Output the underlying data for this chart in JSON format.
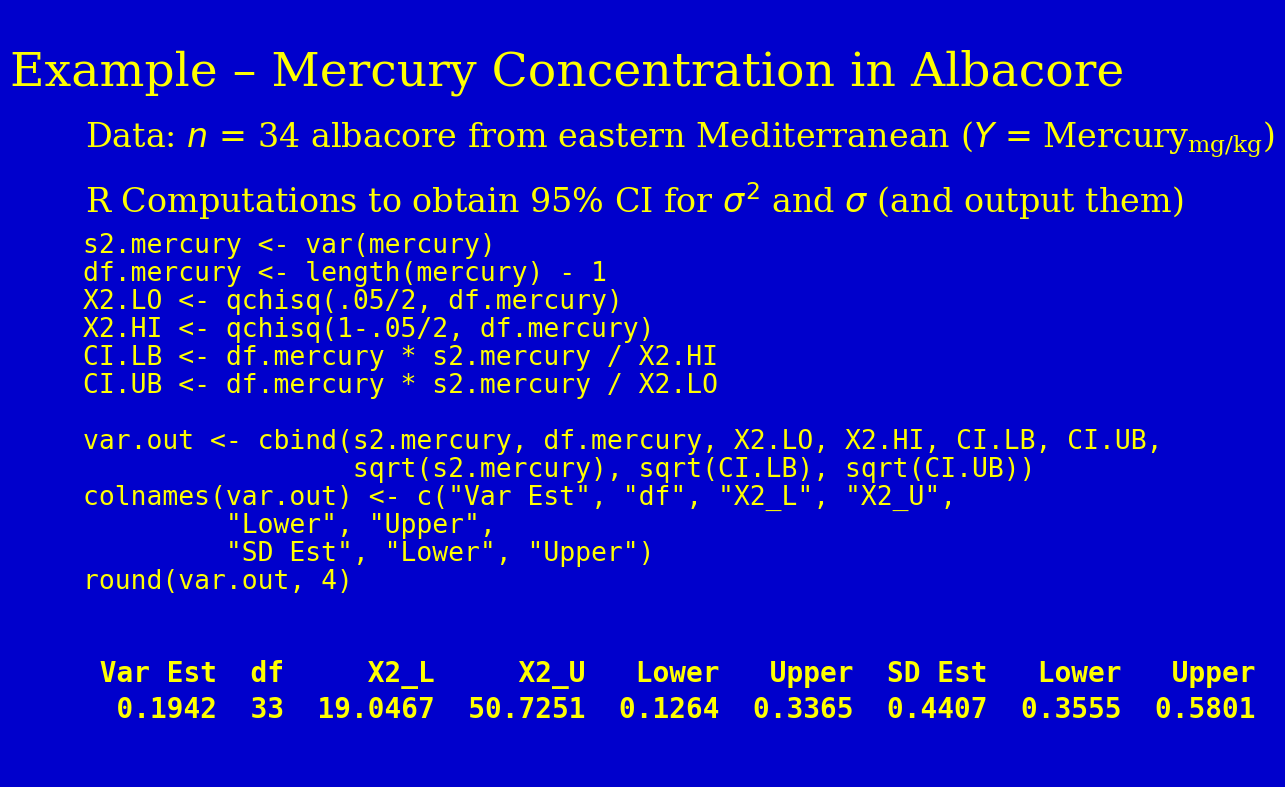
{
  "title": "Example – Mercury Concentration in Albacore",
  "title_color": "#FFFF00",
  "bg_color": "#0000CC",
  "text_color": "#FFFF00",
  "title_fontsize": 34,
  "subtitle_fontsize": 24,
  "r_intro_fontsize": 24,
  "code_fontsize": 19,
  "table_fontsize": 20,
  "code_lines": [
    "s2.mercury <- var(mercury)",
    "df.mercury <- length(mercury) - 1",
    "X2.LO <- qchisq(.05/2, df.mercury)",
    "X2.HI <- qchisq(1-.05/2, df.mercury)",
    "CI.LB <- df.mercury * s2.mercury / X2.HI",
    "CI.UB <- df.mercury * s2.mercury / X2.LO",
    "",
    "var.out <- cbind(s2.mercury, df.mercury, X2.LO, X2.HI, CI.LB, CI.UB,",
    "                 sqrt(s2.mercury), sqrt(CI.LB), sqrt(CI.UB))",
    "colnames(var.out) <- c(\"Var Est\", \"df\", \"X2_L\", \"X2_U\",",
    "         \"Lower\", \"Upper\",",
    "         \"SD Est\", \"Lower\", \"Upper\")",
    "round(var.out, 4)"
  ],
  "table_header": " Var Est  df     X2_L     X2_U   Lower   Upper  SD Est   Lower   Upper",
  "table_data": "  0.1942  33  19.0467  50.7251  0.1264  0.3365  0.4407  0.3555  0.5801"
}
